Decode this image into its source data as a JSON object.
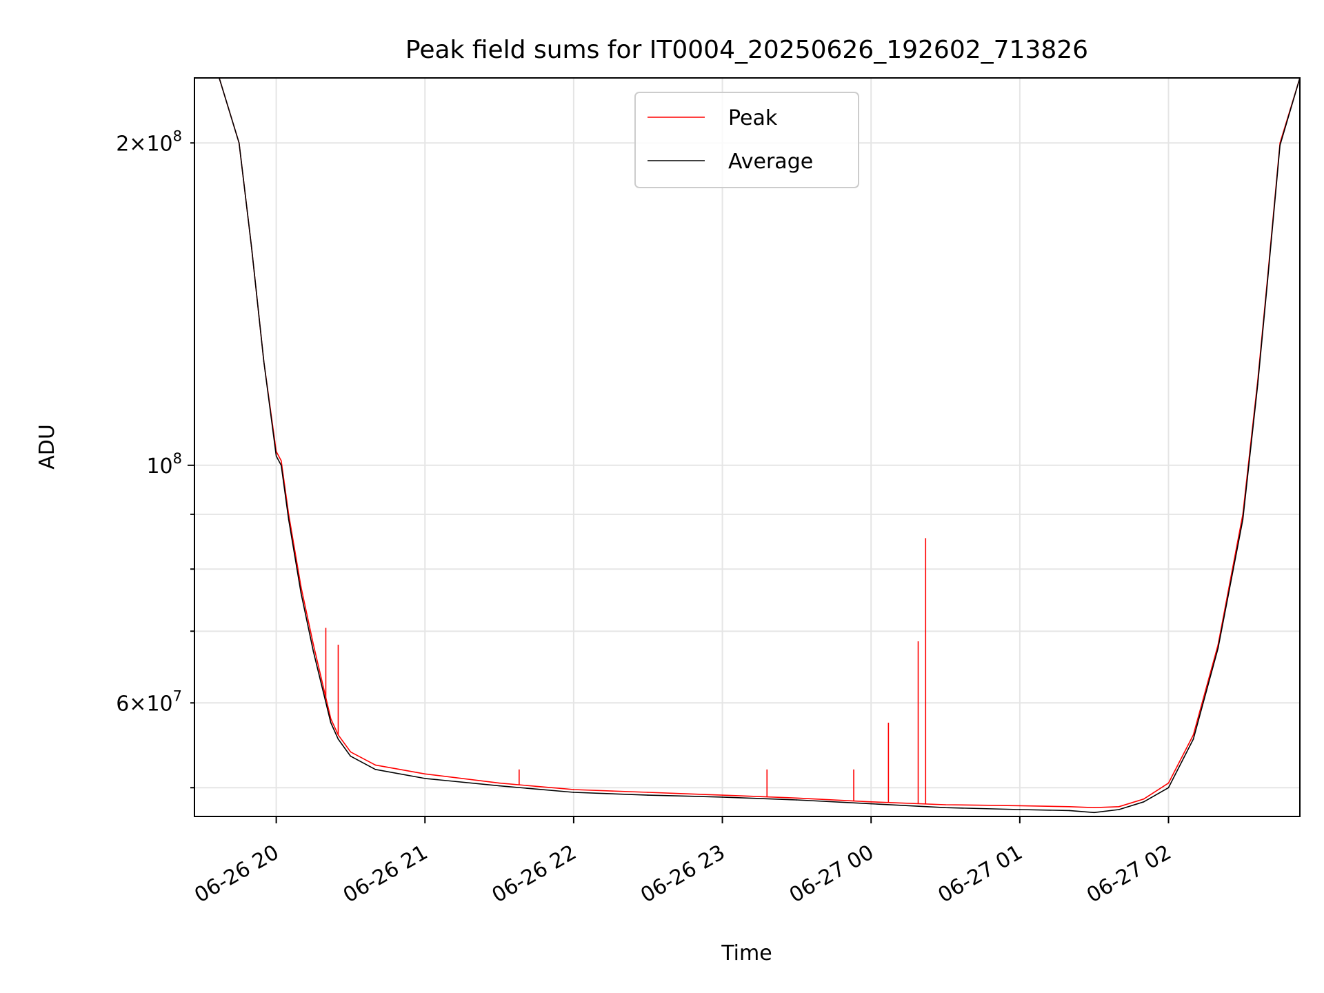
{
  "chart_data": {
    "type": "line",
    "title": "Peak field sums for IT0004_20250626_192602_713826",
    "xlabel": "Time",
    "ylabel": "ADU",
    "y_scale": "log",
    "grid": true,
    "legend_position": "upper center",
    "xlim": [
      "2025-06-26 19:27",
      "2025-06-27 02:53"
    ],
    "ylim": [
      47000000,
      230000000
    ],
    "x_ticks": [
      {
        "t": "2025-06-26 20:00",
        "label": "06-26 20"
      },
      {
        "t": "2025-06-26 21:00",
        "label": "06-26 21"
      },
      {
        "t": "2025-06-26 22:00",
        "label": "06-26 22"
      },
      {
        "t": "2025-06-26 23:00",
        "label": "06-26 23"
      },
      {
        "t": "2025-06-27 00:00",
        "label": "06-27 00"
      },
      {
        "t": "2025-06-27 01:00",
        "label": "06-27 01"
      },
      {
        "t": "2025-06-27 02:00",
        "label": "06-27 02"
      }
    ],
    "y_major_ticks": [
      {
        "value": 100000000,
        "base": "10",
        "exp": "8"
      }
    ],
    "y_labeled_minor_ticks": [
      {
        "value": 200000000,
        "coef": "2",
        "base": "10",
        "exp": "8"
      },
      {
        "value": 60000000,
        "coef": "6",
        "base": "10",
        "exp": "7"
      }
    ],
    "y_minor_ticks": [
      50000000,
      70000000,
      80000000,
      90000000
    ],
    "series": [
      {
        "name": "Peak",
        "color": "#ff0000",
        "x": [
          "2025-06-26 19:27",
          "2025-06-26 19:37",
          "2025-06-26 19:45",
          "2025-06-26 19:50",
          "2025-06-26 19:55",
          "2025-06-26 20:00",
          "2025-06-26 20:02",
          "2025-06-26 20:05",
          "2025-06-26 20:10",
          "2025-06-26 20:15",
          "2025-06-26 20:22",
          "2025-06-26 20:25",
          "2025-06-26 20:30",
          "2025-06-26 20:40",
          "2025-06-26 21:00",
          "2025-06-26 21:30",
          "2025-06-26 22:00",
          "2025-06-26 22:30",
          "2025-06-26 23:00",
          "2025-06-26 23:30",
          "2025-06-27 00:00",
          "2025-06-27 00:30",
          "2025-06-27 01:00",
          "2025-06-27 01:20",
          "2025-06-27 01:30",
          "2025-06-27 01:40",
          "2025-06-27 01:50",
          "2025-06-27 02:00",
          "2025-06-27 02:10",
          "2025-06-27 02:20",
          "2025-06-27 02:30",
          "2025-06-27 02:36",
          "2025-06-27 02:40",
          "2025-06-27 02:45",
          "2025-06-27 02:53"
        ],
        "values": [
          230000000,
          230000000,
          200000000,
          160000000,
          125000000,
          103000000,
          101000000,
          90000000,
          77000000,
          68000000,
          58000000,
          56000000,
          54000000,
          52500000,
          51500000,
          50500000,
          49800000,
          49500000,
          49200000,
          48900000,
          48500000,
          48200000,
          48100000,
          48000000,
          47900000,
          48000000,
          48800000,
          50500000,
          56000000,
          68000000,
          90000000,
          120000000,
          150000000,
          200000000,
          230000000
        ],
        "spikes": [
          {
            "x": "2025-06-26 20:20",
            "value": 70500000
          },
          {
            "x": "2025-06-26 20:25",
            "value": 68000000
          },
          {
            "x": "2025-06-27 00:07",
            "value": 57500000
          },
          {
            "x": "2025-06-27 00:19",
            "value": 68500000
          },
          {
            "x": "2025-06-27 00:22",
            "value": 85500000
          },
          {
            "x": "2025-06-26 23:53",
            "value": 52000000
          },
          {
            "x": "2025-06-26 23:18",
            "value": 52000000
          },
          {
            "x": "2025-06-26 21:38",
            "value": 52000000
          }
        ]
      },
      {
        "name": "Average",
        "color": "#000000",
        "x": [
          "2025-06-26 19:27",
          "2025-06-26 19:37",
          "2025-06-26 19:45",
          "2025-06-26 19:50",
          "2025-06-26 19:55",
          "2025-06-26 20:00",
          "2025-06-26 20:02",
          "2025-06-26 20:05",
          "2025-06-26 20:10",
          "2025-06-26 20:15",
          "2025-06-26 20:22",
          "2025-06-26 20:25",
          "2025-06-26 20:30",
          "2025-06-26 20:40",
          "2025-06-26 21:00",
          "2025-06-26 21:30",
          "2025-06-26 22:00",
          "2025-06-26 22:30",
          "2025-06-26 23:00",
          "2025-06-26 23:30",
          "2025-06-27 00:00",
          "2025-06-27 00:30",
          "2025-06-27 01:00",
          "2025-06-27 01:20",
          "2025-06-27 01:30",
          "2025-06-27 01:40",
          "2025-06-27 01:50",
          "2025-06-27 02:00",
          "2025-06-27 02:10",
          "2025-06-27 02:20",
          "2025-06-27 02:30",
          "2025-06-27 02:36",
          "2025-06-27 02:40",
          "2025-06-27 02:45",
          "2025-06-27 02:53"
        ],
        "values": [
          230000000,
          230000000,
          200000000,
          160000000,
          125000000,
          102000000,
          100000000,
          89000000,
          76000000,
          67000000,
          57500000,
          55500000,
          53500000,
          52000000,
          51000000,
          50200000,
          49500000,
          49200000,
          49000000,
          48700000,
          48300000,
          47900000,
          47700000,
          47600000,
          47400000,
          47700000,
          48500000,
          50000000,
          55500000,
          67500000,
          89000000,
          119000000,
          149000000,
          199000000,
          230000000
        ]
      }
    ]
  }
}
